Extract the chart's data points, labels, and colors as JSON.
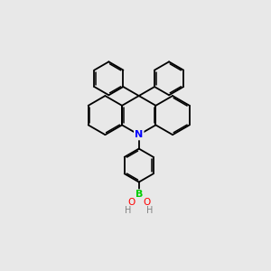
{
  "background_color": "#e8e8e8",
  "atom_colors": {
    "N": "#0000ff",
    "B": "#00cc00",
    "O": "#ff0000",
    "C": "#000000",
    "H": "#808080"
  },
  "bond_color": "#000000",
  "figsize": [
    3.0,
    3.0
  ],
  "dpi": 100
}
